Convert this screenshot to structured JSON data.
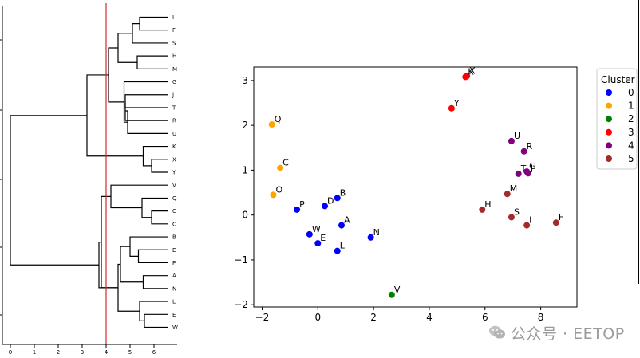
{
  "chart_data": [
    {
      "type": "dendrogram",
      "orientation": "left",
      "x_ticks": [
        "0",
        "1",
        "2",
        "3",
        "4",
        "5",
        "6"
      ],
      "xlim": [
        -0.3,
        6.9
      ],
      "cut_threshold": 4,
      "cut_line_color": "#d62728",
      "line_color": "#000000",
      "leaf_labels": [
        "I",
        "F",
        "S",
        "H",
        "M",
        "G",
        "J",
        "T",
        "R",
        "U",
        "K",
        "X",
        "Y",
        "V",
        "Q",
        "C",
        "O",
        "B",
        "D",
        "P",
        "A",
        "N",
        "L",
        "E",
        "W"
      ],
      "merges": [
        {
          "id": "IF",
          "children": [
            "I",
            "F"
          ],
          "height": 5.4
        },
        {
          "id": "IFS",
          "children": [
            "IF",
            "S"
          ],
          "height": 5.1
        },
        {
          "id": "HM",
          "children": [
            "H",
            "M"
          ],
          "height": 5.3
        },
        {
          "id": "IFSHM",
          "children": [
            "IFS",
            "HM"
          ],
          "height": 4.5
        },
        {
          "id": "JT",
          "children": [
            "J",
            "T"
          ],
          "height": 4.8
        },
        {
          "id": "JTR",
          "children": [
            "JT",
            "R"
          ],
          "height": 4.8
        },
        {
          "id": "RU",
          "children": [
            "JTR",
            "U"
          ],
          "height": 4.9
        },
        {
          "id": "G4",
          "children": [
            "G",
            "RU"
          ],
          "height": 4.75
        },
        {
          "id": "G5",
          "children": [
            "IFSHM",
            "G4"
          ],
          "height": 4.1
        },
        {
          "id": "XY",
          "children": [
            "X",
            "Y"
          ],
          "height": 5.9
        },
        {
          "id": "KXY",
          "children": [
            "K",
            "XY"
          ],
          "height": 5.55
        },
        {
          "id": "ABOVE",
          "children": [
            "G5",
            "KXY"
          ],
          "height": 3.2
        },
        {
          "id": "CO",
          "children": [
            "C",
            "O"
          ],
          "height": 5.9
        },
        {
          "id": "QCO",
          "children": [
            "Q",
            "CO"
          ],
          "height": 5.5
        },
        {
          "id": "VQCO",
          "children": [
            "V",
            "QCO"
          ],
          "height": 4.2
        },
        {
          "id": "DP",
          "children": [
            "D",
            "P"
          ],
          "height": 5.35
        },
        {
          "id": "BDP",
          "children": [
            "B",
            "DP"
          ],
          "height": 5.0
        },
        {
          "id": "AN",
          "children": [
            "A",
            "N"
          ],
          "height": 5.55
        },
        {
          "id": "BDPAN",
          "children": [
            "BDP",
            "AN"
          ],
          "height": 4.6
        },
        {
          "id": "EW",
          "children": [
            "E",
            "W"
          ],
          "height": 5.6
        },
        {
          "id": "LEW",
          "children": [
            "L",
            "EW"
          ],
          "height": 5.4
        },
        {
          "id": "B6",
          "children": [
            "BDPAN",
            "LEW"
          ],
          "height": 4.5
        },
        {
          "id": "LOWER1",
          "children": [
            "VQCO",
            "B6"
          ],
          "height": 3.8
        },
        {
          "id": "LOWER",
          "children": [
            "LOWER1",
            "B6"
          ],
          "height": 3.7
        },
        {
          "id": "ROOT",
          "children": [
            "ABOVE",
            "LOWER"
          ],
          "height": 0.0
        }
      ]
    },
    {
      "type": "scatter",
      "xlim": [
        -2.3,
        9.3
      ],
      "ylim": [
        -2.05,
        3.3
      ],
      "x_ticks": [
        -2,
        0,
        2,
        4,
        6,
        8
      ],
      "y_ticks": [
        -2,
        -1,
        0,
        1,
        2,
        3
      ],
      "x_tick_labels": [
        "−2",
        "0",
        "2",
        "4",
        "6",
        "8"
      ],
      "y_tick_labels": [
        "−2",
        "−1",
        "0",
        "1",
        "2",
        "3"
      ],
      "legend": {
        "title": "Cluster",
        "placement": "outside-right",
        "entries": [
          {
            "label": "0",
            "color": "#0000ff"
          },
          {
            "label": "1",
            "color": "#ffa500"
          },
          {
            "label": "2",
            "color": "#008000"
          },
          {
            "label": "3",
            "color": "#ff0000"
          },
          {
            "label": "4",
            "color": "#800080"
          },
          {
            "label": "5",
            "color": "#a52a2a"
          }
        ]
      },
      "points": [
        {
          "label": "B",
          "x": 0.7,
          "y": 0.38,
          "cluster": 0
        },
        {
          "label": "D",
          "x": 0.25,
          "y": 0.2,
          "cluster": 0
        },
        {
          "label": "P",
          "x": -0.75,
          "y": 0.12,
          "cluster": 0
        },
        {
          "label": "A",
          "x": 0.85,
          "y": -0.23,
          "cluster": 0
        },
        {
          "label": "W",
          "x": -0.3,
          "y": -0.43,
          "cluster": 0
        },
        {
          "label": "E",
          "x": 0.0,
          "y": -0.63,
          "cluster": 0
        },
        {
          "label": "L",
          "x": 0.7,
          "y": -0.8,
          "cluster": 0
        },
        {
          "label": "N",
          "x": 1.9,
          "y": -0.5,
          "cluster": 0
        },
        {
          "label": "Q",
          "x": -1.65,
          "y": 2.02,
          "cluster": 1
        },
        {
          "label": "C",
          "x": -1.35,
          "y": 1.05,
          "cluster": 1
        },
        {
          "label": "O",
          "x": -1.6,
          "y": 0.45,
          "cluster": 1
        },
        {
          "label": "V",
          "x": 2.65,
          "y": -1.78,
          "cluster": 2
        },
        {
          "label": "X",
          "x": 5.35,
          "y": 3.1,
          "cluster": 3
        },
        {
          "label": "K",
          "x": 5.3,
          "y": 3.08,
          "cluster": 3
        },
        {
          "label": "Y",
          "x": 4.8,
          "y": 2.38,
          "cluster": 3
        },
        {
          "label": "U",
          "x": 6.95,
          "y": 1.65,
          "cluster": 4
        },
        {
          "label": "R",
          "x": 7.4,
          "y": 1.42,
          "cluster": 4
        },
        {
          "label": "T",
          "x": 7.2,
          "y": 0.92,
          "cluster": 4
        },
        {
          "label": "G",
          "x": 7.5,
          "y": 0.97,
          "cluster": 4
        },
        {
          "label": "J",
          "x": 7.55,
          "y": 0.93,
          "cluster": 4
        },
        {
          "label": "M",
          "x": 6.8,
          "y": 0.47,
          "cluster": 5
        },
        {
          "label": "H",
          "x": 5.9,
          "y": 0.12,
          "cluster": 5
        },
        {
          "label": "S",
          "x": 6.95,
          "y": -0.05,
          "cluster": 5
        },
        {
          "label": "I",
          "x": 7.5,
          "y": -0.23,
          "cluster": 5
        },
        {
          "label": "F",
          "x": 8.55,
          "y": -0.17,
          "cluster": 5
        }
      ]
    }
  ],
  "watermark": {
    "text": "公众号 · EETOP"
  }
}
